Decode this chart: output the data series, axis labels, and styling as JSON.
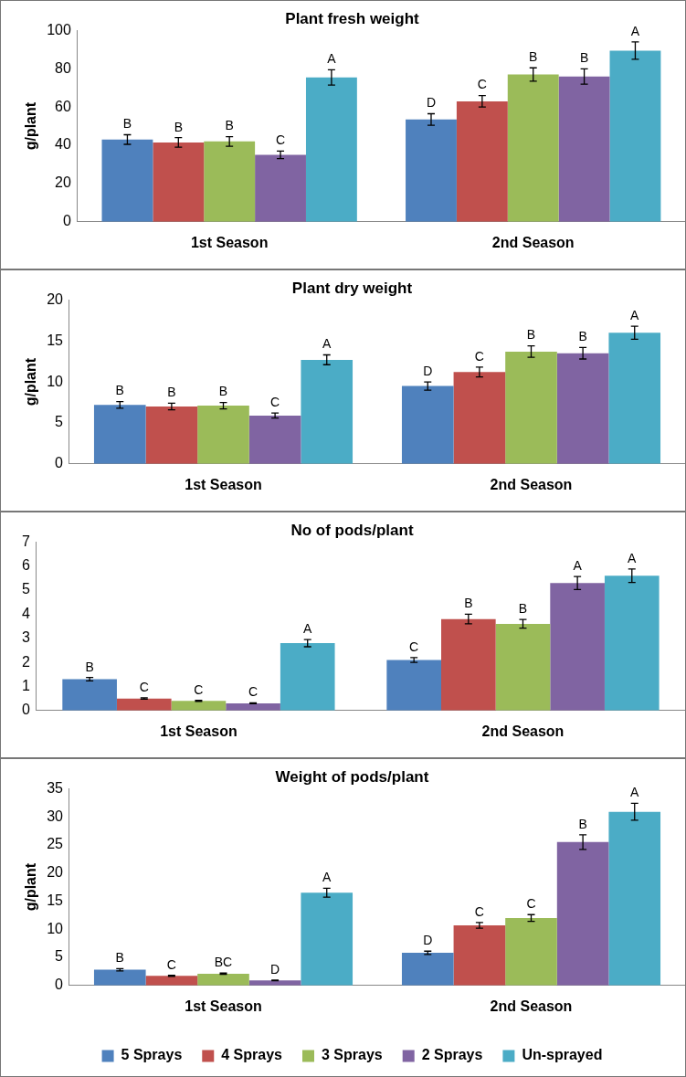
{
  "chart_data": [
    {
      "type": "bar",
      "title": "Plant fresh weight",
      "ylabel": "g/plant",
      "categories": [
        "1st Season",
        "2nd Season"
      ],
      "ylim": [
        0,
        100
      ],
      "yticks": [
        0,
        20,
        40,
        60,
        80,
        100
      ],
      "grid": false,
      "legend": false,
      "series": [
        {
          "color": "#4f81bd",
          "values": [
            43,
            53.5
          ],
          "errors": [
            2.5,
            3
          ],
          "value_labels": [
            "B",
            "D"
          ]
        },
        {
          "color": "#c0504d",
          "values": [
            41.5,
            63
          ],
          "errors": [
            2.5,
            3
          ],
          "value_labels": [
            "B",
            "C"
          ]
        },
        {
          "color": "#9bbb59",
          "values": [
            42,
            77
          ],
          "errors": [
            2.5,
            3.5
          ],
          "value_labels": [
            "B",
            "B"
          ]
        },
        {
          "color": "#8064a2",
          "values": [
            35,
            76
          ],
          "errors": [
            2,
            4
          ],
          "value_labels": [
            "C",
            "B"
          ]
        },
        {
          "color": "#4bacc6",
          "values": [
            75.5,
            89.5
          ],
          "errors": [
            4,
            4.5
          ],
          "value_labels": [
            "A",
            "A"
          ]
        }
      ]
    },
    {
      "type": "bar",
      "title": "Plant dry weight",
      "ylabel": "g/plant",
      "categories": [
        "1st Season",
        "2nd Season"
      ],
      "ylim": [
        0,
        20
      ],
      "yticks": [
        0,
        5,
        10,
        15,
        20
      ],
      "grid": false,
      "legend": false,
      "series": [
        {
          "color": "#4f81bd",
          "values": [
            7.2,
            9.5
          ],
          "errors": [
            0.4,
            0.5
          ],
          "value_labels": [
            "B",
            "D"
          ]
        },
        {
          "color": "#c0504d",
          "values": [
            7.0,
            11.2
          ],
          "errors": [
            0.4,
            0.6
          ],
          "value_labels": [
            "B",
            "C"
          ]
        },
        {
          "color": "#9bbb59",
          "values": [
            7.1,
            13.7
          ],
          "errors": [
            0.4,
            0.7
          ],
          "value_labels": [
            "B",
            "B"
          ]
        },
        {
          "color": "#8064a2",
          "values": [
            5.9,
            13.5
          ],
          "errors": [
            0.3,
            0.7
          ],
          "value_labels": [
            "C",
            "B"
          ]
        },
        {
          "color": "#4bacc6",
          "values": [
            12.7,
            16.0
          ],
          "errors": [
            0.6,
            0.8
          ],
          "value_labels": [
            "A",
            "A"
          ]
        }
      ]
    },
    {
      "type": "bar",
      "title": "No of pods/plant",
      "categories": [
        "1st Season",
        "2nd Season"
      ],
      "ylim": [
        0,
        7
      ],
      "yticks": [
        0,
        1,
        2,
        3,
        4,
        5,
        6,
        7
      ],
      "grid": false,
      "legend": false,
      "series": [
        {
          "color": "#4f81bd",
          "values": [
            1.3,
            2.1
          ],
          "errors": [
            0.07,
            0.1
          ],
          "value_labels": [
            "B",
            "C"
          ]
        },
        {
          "color": "#c0504d",
          "values": [
            0.5,
            3.8
          ],
          "errors": [
            0.03,
            0.2
          ],
          "value_labels": [
            "C",
            "B"
          ]
        },
        {
          "color": "#9bbb59",
          "values": [
            0.4,
            3.6
          ],
          "errors": [
            0.02,
            0.18
          ],
          "value_labels": [
            "C",
            "B"
          ]
        },
        {
          "color": "#8064a2",
          "values": [
            0.3,
            5.3
          ],
          "errors": [
            0.02,
            0.27
          ],
          "value_labels": [
            "C",
            "A"
          ]
        },
        {
          "color": "#4bacc6",
          "values": [
            2.8,
            5.6
          ],
          "errors": [
            0.15,
            0.28
          ],
          "value_labels": [
            "A",
            "A"
          ]
        }
      ]
    },
    {
      "type": "bar",
      "title": "Weight of pods/plant",
      "ylabel": "g/plant",
      "categories": [
        "1st Season",
        "2nd Season"
      ],
      "ylim": [
        0,
        35
      ],
      "yticks": [
        0,
        5,
        10,
        15,
        20,
        25,
        30,
        35
      ],
      "grid": false,
      "legend": "bottom",
      "series": [
        {
          "name": "5 Sprays",
          "color": "#4f81bd",
          "values": [
            2.8,
            5.8
          ],
          "errors": [
            0.2,
            0.3
          ],
          "value_labels": [
            "B",
            "D"
          ]
        },
        {
          "name": "4 Sprays",
          "color": "#c0504d",
          "values": [
            1.7,
            10.7
          ],
          "errors": [
            0.1,
            0.5
          ],
          "value_labels": [
            "C",
            "C"
          ]
        },
        {
          "name": "3 Sprays",
          "color": "#9bbb59",
          "values": [
            2.1,
            12.0
          ],
          "errors": [
            0.1,
            0.6
          ],
          "value_labels": [
            "BC",
            "C"
          ]
        },
        {
          "name": "2 Sprays",
          "color": "#8064a2",
          "values": [
            0.9,
            25.5
          ],
          "errors": [
            0.05,
            1.3
          ],
          "value_labels": [
            "D",
            "B"
          ]
        },
        {
          "name": "Un-sprayed",
          "color": "#4bacc6",
          "values": [
            16.5,
            30.9
          ],
          "errors": [
            0.8,
            1.5
          ],
          "value_labels": [
            "A",
            "A"
          ]
        }
      ]
    }
  ]
}
